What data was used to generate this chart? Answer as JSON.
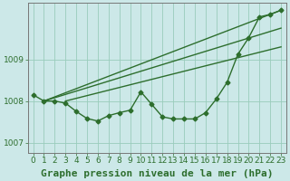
{
  "background_color": "#cce8e8",
  "grid_color": "#99ccbb",
  "line_color": "#2d6e2d",
  "title": "Graphe pression niveau de la mer (hPa)",
  "xlim": [
    -0.5,
    23.5
  ],
  "ylim": [
    1006.75,
    1010.35
  ],
  "yticks": [
    1007,
    1008,
    1009
  ],
  "xticks": [
    0,
    1,
    2,
    3,
    4,
    5,
    6,
    7,
    8,
    9,
    10,
    11,
    12,
    13,
    14,
    15,
    16,
    17,
    18,
    19,
    20,
    21,
    22,
    23
  ],
  "main_x": [
    0,
    1,
    2,
    3,
    4,
    5,
    6,
    7,
    8,
    9,
    10,
    11,
    12,
    13,
    14,
    15,
    16,
    17,
    18,
    19,
    20,
    21,
    22,
    23
  ],
  "main_y": [
    1008.15,
    1008.0,
    1008.0,
    1007.95,
    1007.75,
    1007.58,
    1007.52,
    1007.65,
    1007.72,
    1007.78,
    1008.22,
    1007.92,
    1007.62,
    1007.57,
    1007.57,
    1007.57,
    1007.72,
    1008.05,
    1008.45,
    1009.12,
    1009.52,
    1010.02,
    1010.08,
    1010.18
  ],
  "line1": [
    [
      1,
      23
    ],
    [
      1008.0,
      1010.18
    ]
  ],
  "line2": [
    [
      1,
      23
    ],
    [
      1008.0,
      1009.75
    ]
  ],
  "line3": [
    [
      3,
      23
    ],
    [
      1008.0,
      1009.3
    ]
  ],
  "title_fontsize": 8,
  "tick_fontsize": 6.5,
  "marker_size": 2.5,
  "line_width": 1.0
}
